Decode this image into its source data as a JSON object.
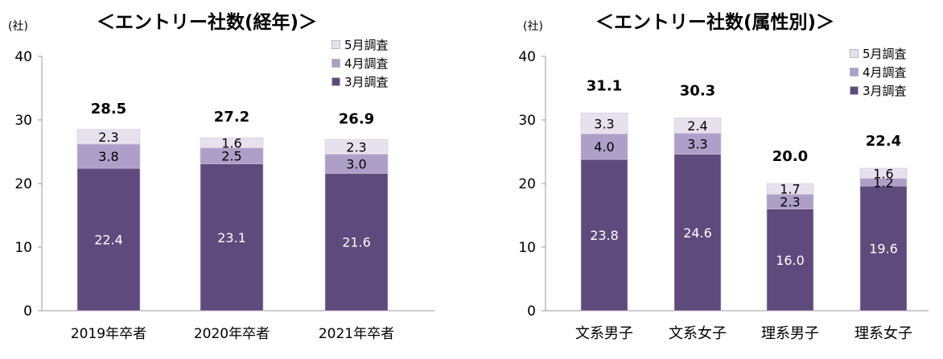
{
  "colors": {
    "march": "#5e4a7c",
    "april": "#ae9fc8",
    "may": "#e7e1ee",
    "axis": "#999999",
    "text": "#000000",
    "inner_text_dark": "#ffffff"
  },
  "legend": {
    "may": "5月調査",
    "april": "4月調査",
    "march": "3月調査"
  },
  "chart_data": [
    {
      "type": "bar",
      "stacked": true,
      "title": "＜エントリー社数(経年)＞",
      "unit_label": "(社)",
      "ylim": [
        0,
        40
      ],
      "yticks": [
        "0",
        "10",
        "20",
        "30",
        "40"
      ],
      "categories": [
        "2019年卒者",
        "2020年卒者",
        "2021年卒者"
      ],
      "totals": [
        "28.5",
        "27.2",
        "26.9"
      ],
      "series": [
        {
          "name": "3月調査",
          "key": "march",
          "values": [
            22.4,
            23.1,
            21.6
          ],
          "labels": [
            "22.4",
            "23.1",
            "21.6"
          ]
        },
        {
          "name": "4月調査",
          "key": "april",
          "values": [
            3.8,
            2.5,
            3.0
          ],
          "labels": [
            "3.8",
            "2.5",
            "3.0"
          ]
        },
        {
          "name": "5月調査",
          "key": "may",
          "values": [
            2.3,
            1.6,
            2.3
          ],
          "labels": [
            "2.3",
            "1.6",
            "2.3"
          ]
        }
      ]
    },
    {
      "type": "bar",
      "stacked": true,
      "title": "＜エントリー社数(属性別)＞",
      "unit_label": "(社)",
      "ylim": [
        0,
        40
      ],
      "yticks": [
        "0",
        "10",
        "20",
        "30",
        "40"
      ],
      "categories": [
        "文系男子",
        "文系女子",
        "理系男子",
        "理系女子"
      ],
      "totals": [
        "31.1",
        "30.3",
        "20.0",
        "22.4"
      ],
      "series": [
        {
          "name": "3月調査",
          "key": "march",
          "values": [
            23.8,
            24.6,
            16.0,
            19.6
          ],
          "labels": [
            "23.8",
            "24.6",
            "16.0",
            "19.6"
          ]
        },
        {
          "name": "4月調査",
          "key": "april",
          "values": [
            4.0,
            3.3,
            2.3,
            1.2
          ],
          "labels": [
            "4.0",
            "3.3",
            "2.3",
            "1.2"
          ]
        },
        {
          "name": "5月調査",
          "key": "may",
          "values": [
            3.3,
            2.4,
            1.7,
            1.6
          ],
          "labels": [
            "3.3",
            "2.4",
            "1.7",
            "1.6"
          ]
        }
      ]
    }
  ]
}
